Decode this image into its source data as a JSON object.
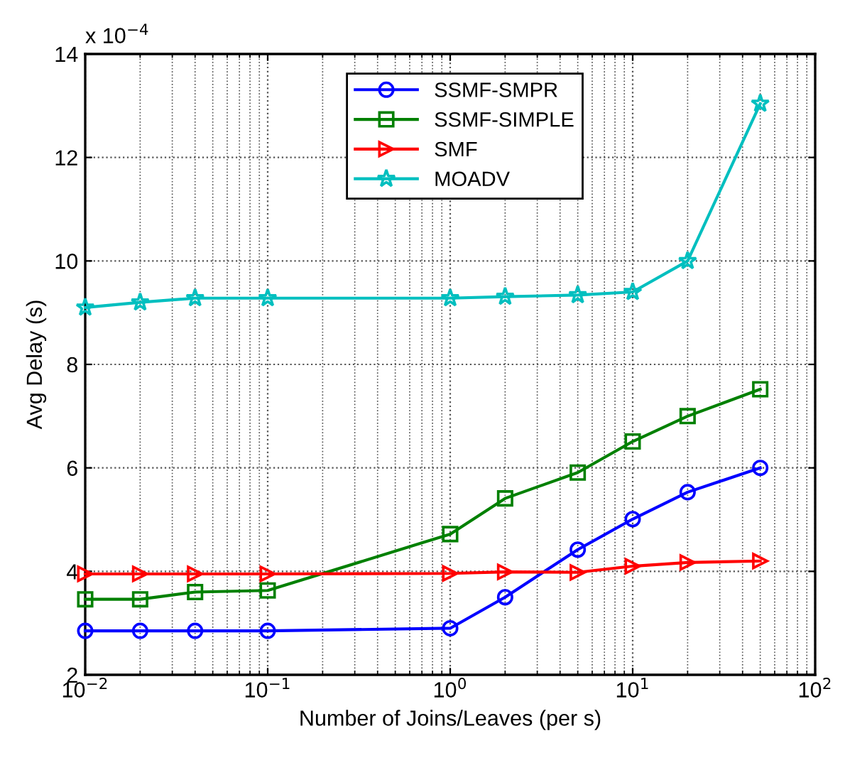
{
  "chart_data": {
    "type": "line",
    "xlabel": "Number of Joins/Leaves (per s)",
    "ylabel": "Avg Delay (s)",
    "annotations": [
      "x 10$^{−4}$"
    ],
    "x": [
      0.01,
      0.02,
      0.04,
      0.1,
      1,
      2,
      5,
      10,
      20,
      50
    ],
    "series": [
      {
        "name": "SSMF-SMPR",
        "color": "#0000ff",
        "marker": "circle",
        "values": [
          2.85,
          2.85,
          2.85,
          2.85,
          2.9,
          3.5,
          4.42,
          5.01,
          5.53,
          6.0
        ]
      },
      {
        "name": "SSMF-SIMPLE",
        "color": "#008000",
        "marker": "square",
        "values": [
          3.46,
          3.46,
          3.6,
          3.63,
          4.72,
          5.41,
          5.91,
          6.51,
          7.0,
          7.52
        ]
      },
      {
        "name": "SMF",
        "color": "#ff0000",
        "marker": "triangle",
        "values": [
          3.95,
          3.95,
          3.95,
          3.95,
          3.96,
          3.99,
          3.98,
          4.1,
          4.17,
          4.2
        ]
      },
      {
        "name": "MOADV",
        "color": "#00bfbf",
        "marker": "star",
        "values": [
          9.1,
          9.2,
          9.28,
          9.28,
          9.28,
          9.31,
          9.34,
          9.4,
          10.0,
          13.04
        ]
      }
    ],
    "log": "x",
    "xlim": [
      0.01,
      100
    ],
    "xticks": [
      {
        "value": 0.01,
        "label": "10$^{−2}$"
      },
      {
        "value": 0.1,
        "label": "10$^{−1}$"
      },
      {
        "value": 1,
        "label": "10$^{0}$"
      },
      {
        "value": 10,
        "label": "10$^{1}$"
      },
      {
        "value": 100,
        "label": "10$^{2}$"
      }
    ],
    "ylim": [
      2,
      14
    ],
    "yticks": [
      2,
      4,
      6,
      8,
      10,
      12,
      14
    ],
    "grid": true,
    "legend": "top",
    "line_style": "solid"
  }
}
